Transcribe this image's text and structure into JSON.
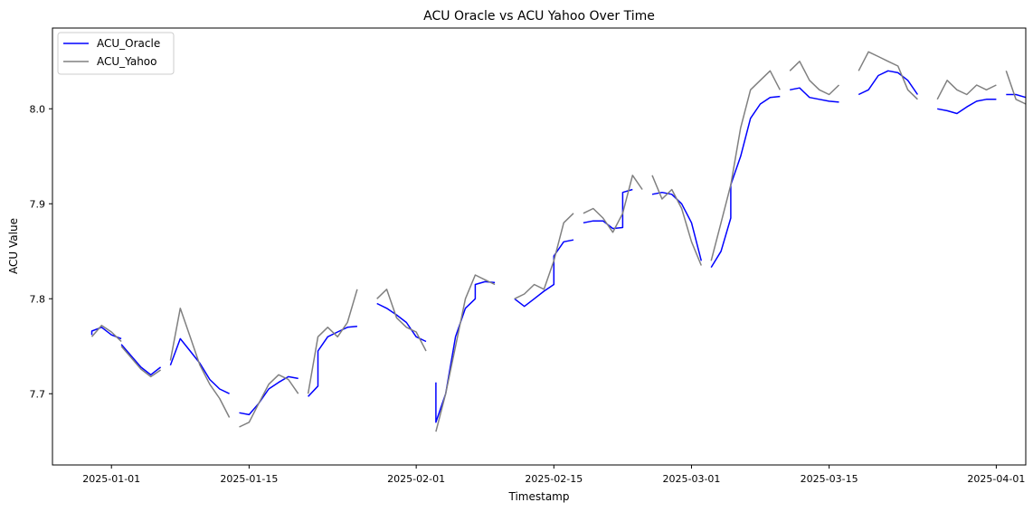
{
  "chart_data": {
    "type": "line",
    "title": "ACU Oracle vs ACU Yahoo Over Time",
    "xlabel": "Timestamp",
    "ylabel": "ACU Value",
    "x_range": [
      "2024-12-26",
      "2025-04-04"
    ],
    "ylim": [
      7.625,
      8.085
    ],
    "x_ticks": [
      "2025-01-01",
      "2025-01-15",
      "2025-02-01",
      "2025-02-15",
      "2025-03-01",
      "2025-03-15",
      "2025-04-01"
    ],
    "y_ticks": [
      7.7,
      7.8,
      7.9,
      8.0
    ],
    "y_tick_labels": [
      "7.7",
      "7.8",
      "7.9",
      "8.0"
    ],
    "grid": false,
    "legend_position": "top-left",
    "series": [
      {
        "name": "ACU_Oracle",
        "color": "#0000ff",
        "segments": [
          [
            [
              "2024-12-30",
              7.762
            ],
            [
              "2024-12-30",
              7.766
            ],
            [
              "2024-12-31",
              7.77
            ],
            [
              "2025-01-01",
              7.762
            ],
            [
              "2025-01-02",
              7.758
            ]
          ],
          [
            [
              "2025-01-02",
              7.752
            ],
            [
              "2025-01-03",
              7.74
            ],
            [
              "2025-01-04",
              7.728
            ],
            [
              "2025-01-05",
              7.72
            ],
            [
              "2025-01-06",
              7.728
            ]
          ],
          [
            [
              "2025-01-07",
              7.73
            ],
            [
              "2025-01-08",
              7.758
            ],
            [
              "2025-01-09",
              7.745
            ],
            [
              "2025-01-10",
              7.732
            ],
            [
              "2025-01-11",
              7.715
            ],
            [
              "2025-01-12",
              7.705
            ],
            [
              "2025-01-13",
              7.7
            ]
          ],
          [
            [
              "2025-01-14",
              7.68
            ],
            [
              "2025-01-15",
              7.678
            ],
            [
              "2025-01-16",
              7.69
            ],
            [
              "2025-01-17",
              7.705
            ],
            [
              "2025-01-18",
              7.712
            ],
            [
              "2025-01-19",
              7.718
            ],
            [
              "2025-01-20",
              7.716
            ]
          ],
          [
            [
              "2025-01-21",
              7.697
            ],
            [
              "2025-01-22",
              7.708
            ],
            [
              "2025-01-22",
              7.745
            ],
            [
              "2025-01-23",
              7.76
            ],
            [
              "2025-01-24",
              7.765
            ],
            [
              "2025-01-25",
              7.77
            ],
            [
              "2025-01-26",
              7.771
            ]
          ],
          [
            [
              "2025-01-28",
              7.795
            ],
            [
              "2025-01-29",
              7.79
            ],
            [
              "2025-01-30",
              7.783
            ],
            [
              "2025-01-31",
              7.775
            ],
            [
              "2025-02-01",
              7.76
            ],
            [
              "2025-02-02",
              7.755
            ]
          ],
          [
            [
              "2025-02-03",
              7.712
            ],
            [
              "2025-02-03",
              7.67
            ],
            [
              "2025-02-04",
              7.7
            ],
            [
              "2025-02-05",
              7.76
            ],
            [
              "2025-02-06",
              7.79
            ],
            [
              "2025-02-07",
              7.8
            ],
            [
              "2025-02-07",
              7.815
            ],
            [
              "2025-02-08",
              7.818
            ],
            [
              "2025-02-09",
              7.817
            ]
          ],
          [
            [
              "2025-02-11",
              7.8
            ],
            [
              "2025-02-12",
              7.792
            ],
            [
              "2025-02-13",
              7.8
            ],
            [
              "2025-02-14",
              7.808
            ],
            [
              "2025-02-15",
              7.815
            ],
            [
              "2025-02-15",
              7.845
            ],
            [
              "2025-02-16",
              7.86
            ],
            [
              "2025-02-17",
              7.862
            ]
          ],
          [
            [
              "2025-02-18",
              7.88
            ],
            [
              "2025-02-19",
              7.882
            ],
            [
              "2025-02-20",
              7.882
            ],
            [
              "2025-02-21",
              7.874
            ],
            [
              "2025-02-22",
              7.875
            ],
            [
              "2025-02-22",
              7.912
            ],
            [
              "2025-02-23",
              7.915
            ]
          ],
          [
            [
              "2025-02-25",
              7.91
            ],
            [
              "2025-02-26",
              7.912
            ],
            [
              "2025-02-27",
              7.91
            ],
            [
              "2025-02-28",
              7.9
            ],
            [
              "2025-03-01",
              7.88
            ],
            [
              "2025-03-02",
              7.84
            ]
          ],
          [
            [
              "2025-03-03",
              7.833
            ],
            [
              "2025-03-04",
              7.85
            ],
            [
              "2025-03-05",
              7.885
            ],
            [
              "2025-03-05",
              7.92
            ],
            [
              "2025-03-06",
              7.95
            ],
            [
              "2025-03-07",
              7.99
            ],
            [
              "2025-03-08",
              8.005
            ],
            [
              "2025-03-09",
              8.012
            ],
            [
              "2025-03-10",
              8.013
            ]
          ],
          [
            [
              "2025-03-11",
              8.02
            ],
            [
              "2025-03-12",
              8.022
            ],
            [
              "2025-03-13",
              8.012
            ],
            [
              "2025-03-14",
              8.01
            ],
            [
              "2025-03-15",
              8.008
            ],
            [
              "2025-03-16",
              8.007
            ]
          ],
          [
            [
              "2025-03-18",
              8.015
            ],
            [
              "2025-03-19",
              8.02
            ],
            [
              "2025-03-20",
              8.035
            ],
            [
              "2025-03-21",
              8.04
            ],
            [
              "2025-03-22",
              8.038
            ],
            [
              "2025-03-23",
              8.03
            ],
            [
              "2025-03-24",
              8.015
            ]
          ],
          [
            [
              "2025-03-26",
              8.0
            ],
            [
              "2025-03-27",
              7.998
            ],
            [
              "2025-03-28",
              7.995
            ],
            [
              "2025-03-29",
              8.002
            ],
            [
              "2025-03-30",
              8.008
            ],
            [
              "2025-03-31",
              8.01
            ],
            [
              "2025-04-01",
              8.01
            ]
          ],
          [
            [
              "2025-04-02",
              8.015
            ],
            [
              "2025-04-03",
              8.015
            ],
            [
              "2025-04-04",
              8.012
            ]
          ]
        ]
      },
      {
        "name": "ACU_Yahoo",
        "color": "#808080",
        "segments": [
          [
            [
              "2024-12-30",
              7.76
            ],
            [
              "2024-12-31",
              7.772
            ],
            [
              "2025-01-01",
              7.765
            ],
            [
              "2025-01-02",
              7.755
            ]
          ],
          [
            [
              "2025-01-02",
              7.75
            ],
            [
              "2025-01-03",
              7.738
            ],
            [
              "2025-01-04",
              7.726
            ],
            [
              "2025-01-05",
              7.718
            ],
            [
              "2025-01-06",
              7.725
            ]
          ],
          [
            [
              "2025-01-07",
              7.735
            ],
            [
              "2025-01-08",
              7.79
            ],
            [
              "2025-01-09",
              7.76
            ],
            [
              "2025-01-10",
              7.73
            ],
            [
              "2025-01-11",
              7.71
            ],
            [
              "2025-01-12",
              7.695
            ],
            [
              "2025-01-13",
              7.675
            ]
          ],
          [
            [
              "2025-01-14",
              7.665
            ],
            [
              "2025-01-15",
              7.67
            ],
            [
              "2025-01-16",
              7.69
            ],
            [
              "2025-01-17",
              7.71
            ],
            [
              "2025-01-18",
              7.72
            ],
            [
              "2025-01-19",
              7.715
            ],
            [
              "2025-01-20",
              7.7
            ]
          ],
          [
            [
              "2025-01-21",
              7.7
            ],
            [
              "2025-01-22",
              7.76
            ],
            [
              "2025-01-23",
              7.77
            ],
            [
              "2025-01-24",
              7.76
            ],
            [
              "2025-01-25",
              7.775
            ],
            [
              "2025-01-26",
              7.81
            ]
          ],
          [
            [
              "2025-01-28",
              7.8
            ],
            [
              "2025-01-29",
              7.81
            ],
            [
              "2025-01-30",
              7.78
            ],
            [
              "2025-01-31",
              7.77
            ],
            [
              "2025-02-01",
              7.765
            ],
            [
              "2025-02-02",
              7.745
            ]
          ],
          [
            [
              "2025-02-03",
              7.66
            ],
            [
              "2025-02-04",
              7.7
            ],
            [
              "2025-02-05",
              7.75
            ],
            [
              "2025-02-06",
              7.8
            ],
            [
              "2025-02-07",
              7.825
            ],
            [
              "2025-02-08",
              7.82
            ],
            [
              "2025-02-09",
              7.815
            ]
          ],
          [
            [
              "2025-02-11",
              7.8
            ],
            [
              "2025-02-12",
              7.805
            ],
            [
              "2025-02-13",
              7.815
            ],
            [
              "2025-02-14",
              7.81
            ],
            [
              "2025-02-15",
              7.84
            ],
            [
              "2025-02-16",
              7.88
            ],
            [
              "2025-02-17",
              7.89
            ]
          ],
          [
            [
              "2025-02-18",
              7.89
            ],
            [
              "2025-02-19",
              7.895
            ],
            [
              "2025-02-20",
              7.885
            ],
            [
              "2025-02-21",
              7.87
            ],
            [
              "2025-02-22",
              7.89
            ],
            [
              "2025-02-23",
              7.93
            ],
            [
              "2025-02-24",
              7.915
            ]
          ],
          [
            [
              "2025-02-25",
              7.93
            ],
            [
              "2025-02-26",
              7.905
            ],
            [
              "2025-02-27",
              7.915
            ],
            [
              "2025-02-28",
              7.895
            ],
            [
              "2025-03-01",
              7.86
            ],
            [
              "2025-03-02",
              7.835
            ]
          ],
          [
            [
              "2025-03-03",
              7.84
            ],
            [
              "2025-03-04",
              7.88
            ],
            [
              "2025-03-05",
              7.92
            ],
            [
              "2025-03-06",
              7.98
            ],
            [
              "2025-03-07",
              8.02
            ],
            [
              "2025-03-08",
              8.03
            ],
            [
              "2025-03-09",
              8.04
            ],
            [
              "2025-03-10",
              8.02
            ]
          ],
          [
            [
              "2025-03-11",
              8.04
            ],
            [
              "2025-03-12",
              8.05
            ],
            [
              "2025-03-13",
              8.03
            ],
            [
              "2025-03-14",
              8.02
            ],
            [
              "2025-03-15",
              8.015
            ],
            [
              "2025-03-16",
              8.025
            ]
          ],
          [
            [
              "2025-03-18",
              8.04
            ],
            [
              "2025-03-19",
              8.06
            ],
            [
              "2025-03-20",
              8.055
            ],
            [
              "2025-03-21",
              8.05
            ],
            [
              "2025-03-22",
              8.045
            ],
            [
              "2025-03-23",
              8.02
            ],
            [
              "2025-03-24",
              8.01
            ]
          ],
          [
            [
              "2025-03-26",
              8.01
            ],
            [
              "2025-03-27",
              8.03
            ],
            [
              "2025-03-28",
              8.02
            ],
            [
              "2025-03-29",
              8.015
            ],
            [
              "2025-03-30",
              8.025
            ],
            [
              "2025-03-31",
              8.02
            ],
            [
              "2025-04-01",
              8.025
            ]
          ],
          [
            [
              "2025-04-02",
              8.04
            ],
            [
              "2025-04-03",
              8.01
            ],
            [
              "2025-04-04",
              8.005
            ]
          ]
        ]
      }
    ]
  }
}
